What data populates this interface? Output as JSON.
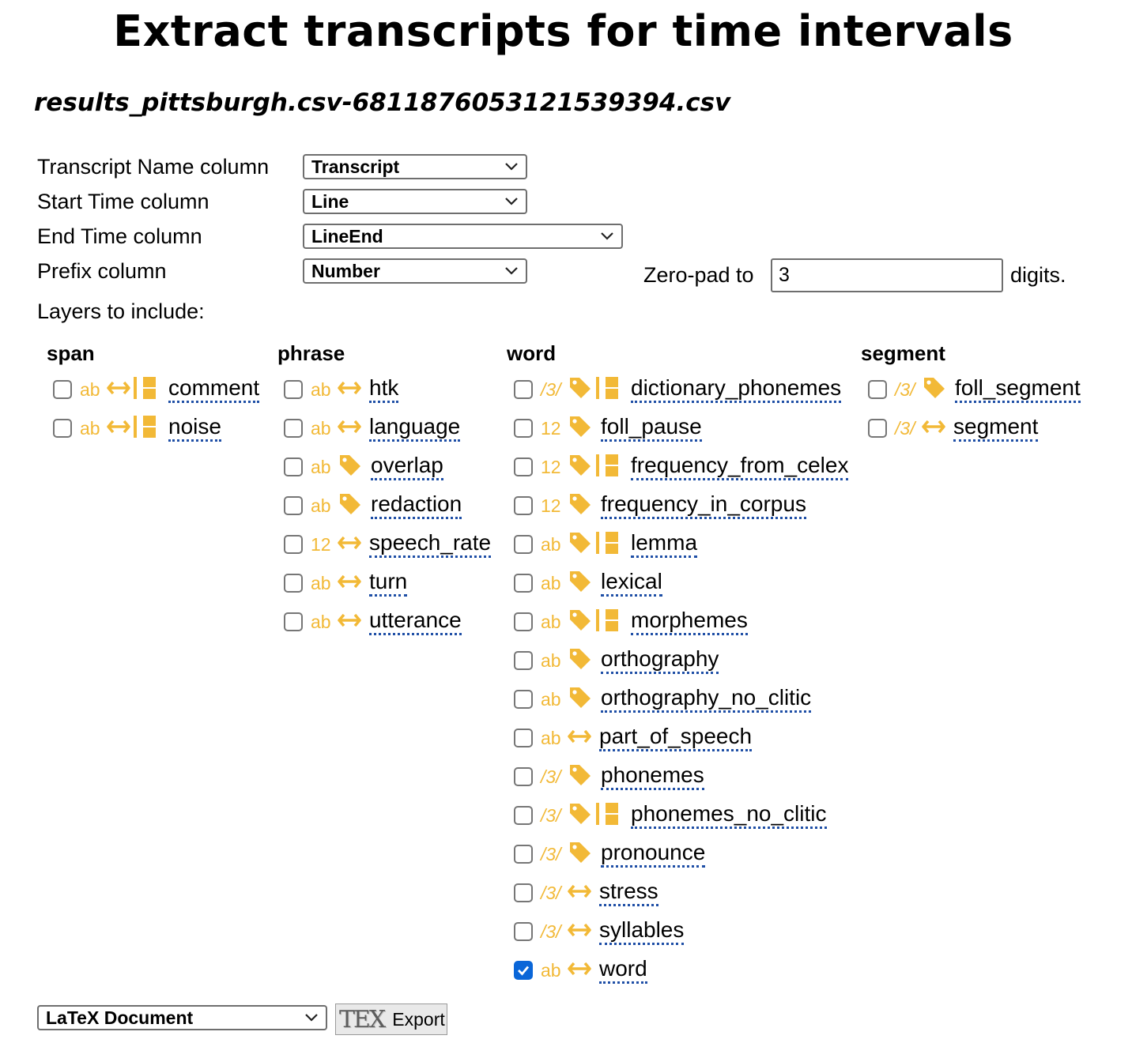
{
  "page": {
    "title": "Extract transcripts for time intervals",
    "file_name": "results_pittsburgh.csv-6811876053121539394.csv"
  },
  "form": {
    "transcript_name": {
      "label": "Transcript Name column",
      "value": "Transcript"
    },
    "start_time": {
      "label": "Start Time column",
      "value": "Line"
    },
    "end_time": {
      "label": "End Time column",
      "value": "LineEnd"
    },
    "prefix": {
      "label": "Prefix column",
      "value": "Number"
    },
    "zero_pad": {
      "label": "Zero-pad to",
      "value": "3",
      "suffix": "digits."
    },
    "layers_label": "Layers to include:"
  },
  "columns": {
    "span": "span",
    "phrase": "phrase",
    "word": "word",
    "segment": "segment"
  },
  "layers": {
    "span": [
      {
        "label": "comment",
        "type": "ab",
        "icons": [
          "arrow-icon",
          "bar-icon"
        ],
        "checked": false
      },
      {
        "label": "noise",
        "type": "ab",
        "icons": [
          "arrow-icon",
          "bar-icon"
        ],
        "checked": false
      }
    ],
    "phrase": [
      {
        "label": "htk",
        "type": "ab",
        "icons": [
          "arrow-icon"
        ],
        "checked": false
      },
      {
        "label": "language",
        "type": "ab",
        "icons": [
          "arrow-icon"
        ],
        "checked": false
      },
      {
        "label": "overlap",
        "type": "ab",
        "icons": [
          "tag-icon"
        ],
        "checked": false
      },
      {
        "label": "redaction",
        "type": "ab",
        "icons": [
          "tag-icon"
        ],
        "checked": false
      },
      {
        "label": "speech_rate",
        "type": "12",
        "icons": [
          "arrow-icon"
        ],
        "checked": false
      },
      {
        "label": "turn",
        "type": "ab",
        "icons": [
          "arrow-icon"
        ],
        "checked": false
      },
      {
        "label": "utterance",
        "type": "ab",
        "icons": [
          "arrow-icon"
        ],
        "checked": false
      }
    ],
    "word": [
      {
        "label": "dictionary_phonemes",
        "type": "/3/",
        "icons": [
          "tag-icon",
          "bar-icon"
        ],
        "checked": false
      },
      {
        "label": "foll_pause",
        "type": "12",
        "icons": [
          "tag-icon"
        ],
        "checked": false
      },
      {
        "label": "frequency_from_celex",
        "type": "12",
        "icons": [
          "tag-icon",
          "bar-icon"
        ],
        "checked": false
      },
      {
        "label": "frequency_in_corpus",
        "type": "12",
        "icons": [
          "tag-icon"
        ],
        "checked": false
      },
      {
        "label": "lemma",
        "type": "ab",
        "icons": [
          "tag-icon",
          "bar-icon"
        ],
        "checked": false
      },
      {
        "label": "lexical",
        "type": "ab",
        "icons": [
          "tag-icon"
        ],
        "checked": false
      },
      {
        "label": "morphemes",
        "type": "ab",
        "icons": [
          "tag-icon",
          "bar-icon"
        ],
        "checked": false
      },
      {
        "label": "orthography",
        "type": "ab",
        "icons": [
          "tag-icon"
        ],
        "checked": false
      },
      {
        "label": "orthography_no_clitic",
        "type": "ab",
        "icons": [
          "tag-icon"
        ],
        "checked": false
      },
      {
        "label": "part_of_speech",
        "type": "ab",
        "icons": [
          "arrow-icon"
        ],
        "checked": false
      },
      {
        "label": "phonemes",
        "type": "/3/",
        "icons": [
          "tag-icon"
        ],
        "checked": false
      },
      {
        "label": "phonemes_no_clitic",
        "type": "/3/",
        "icons": [
          "tag-icon",
          "bar-icon"
        ],
        "checked": false
      },
      {
        "label": "pronounce",
        "type": "/3/",
        "icons": [
          "tag-icon"
        ],
        "checked": false
      },
      {
        "label": "stress",
        "type": "/3/",
        "icons": [
          "arrow-icon"
        ],
        "checked": false
      },
      {
        "label": "syllables",
        "type": "/3/",
        "icons": [
          "arrow-icon"
        ],
        "checked": false
      },
      {
        "label": "word",
        "type": "ab",
        "icons": [
          "arrow-icon"
        ],
        "checked": true
      }
    ],
    "segment": [
      {
        "label": "foll_segment",
        "type": "/3/",
        "icons": [
          "tag-icon"
        ],
        "checked": false
      },
      {
        "label": "segment",
        "type": "/3/",
        "icons": [
          "arrow-icon"
        ],
        "checked": false
      }
    ]
  },
  "export": {
    "format": "LaTeX Document",
    "button_logo": "TEX",
    "button_label": "Export"
  },
  "colors": {
    "accent": "#f2b937",
    "link_underline": "#1f4fa6",
    "checked": "#0a66d8"
  }
}
